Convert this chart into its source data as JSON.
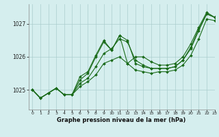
{
  "title": "Graphe pression niveau de la mer (hPa)",
  "background_color": "#d5eeee",
  "grid_color": "#aacece",
  "line_color": "#1a6b1a",
  "xlim": [
    -0.5,
    23
  ],
  "ylim": [
    1024.4,
    1027.6
  ],
  "yticks": [
    1025,
    1026,
    1027
  ],
  "xticks": [
    0,
    1,
    2,
    3,
    4,
    5,
    6,
    7,
    8,
    9,
    10,
    11,
    12,
    13,
    14,
    15,
    16,
    17,
    18,
    19,
    20,
    21,
    22,
    23
  ],
  "series": [
    [
      1025.0,
      1024.75,
      1024.9,
      1025.05,
      1024.85,
      1024.85,
      1025.1,
      1025.25,
      1025.45,
      1025.8,
      1025.9,
      1026.0,
      1025.8,
      1025.6,
      1025.55,
      1025.5,
      1025.55,
      1025.55,
      1025.6,
      1025.75,
      1026.05,
      1026.55,
      1027.15,
      1027.1
    ],
    [
      1025.0,
      1024.75,
      1024.9,
      1025.05,
      1024.85,
      1024.85,
      1025.2,
      1025.35,
      1025.7,
      1026.1,
      1026.25,
      1026.55,
      1026.45,
      1025.9,
      1025.75,
      1025.65,
      1025.65,
      1025.65,
      1025.7,
      1025.9,
      1026.25,
      1026.8,
      1027.3,
      1027.2
    ],
    [
      1025.0,
      1024.75,
      1024.9,
      1025.05,
      1024.85,
      1024.85,
      1025.3,
      1025.5,
      1026.0,
      1026.45,
      1026.2,
      1026.65,
      1026.5,
      1025.8,
      1025.7,
      1025.65,
      1025.65,
      1025.65,
      1025.7,
      1025.9,
      1026.3,
      1026.85,
      1027.3,
      1027.2
    ],
    [
      1025.0,
      1024.75,
      1024.9,
      1025.05,
      1024.85,
      1024.85,
      1025.4,
      1025.55,
      1026.05,
      1026.5,
      1026.2,
      1026.65,
      1025.8,
      1026.0,
      1026.0,
      1025.85,
      1025.75,
      1025.75,
      1025.8,
      1026.0,
      1026.4,
      1026.9,
      1027.35,
      1027.2
    ]
  ]
}
